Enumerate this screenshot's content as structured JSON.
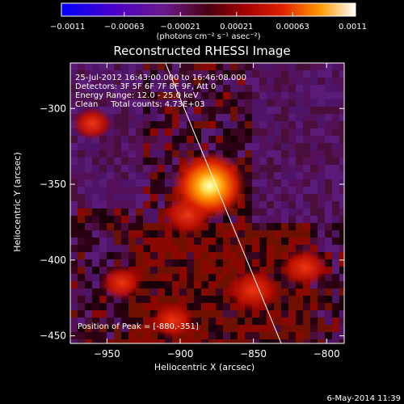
{
  "chart_data": {
    "type": "heatmap",
    "title": "Reconstructed RHESSI Image",
    "xlabel": "Heliocentric X (arcsec)",
    "ylabel": "Heliocentric Y (arcsec)",
    "xlim": [
      -975,
      -788
    ],
    "ylim": [
      -455,
      -270
    ],
    "xticks": [
      -950,
      -900,
      -850,
      -800
    ],
    "xtick_labels": [
      "−950",
      "−900",
      "−850",
      "−800"
    ],
    "yticks": [
      -450,
      -400,
      -350,
      -300
    ],
    "ytick_labels": [
      "−450",
      "−400",
      "−350",
      "−300"
    ],
    "colorbar": {
      "range": [
        -0.0011,
        0.0011
      ],
      "ticks": [
        -0.0011,
        -0.00063,
        -0.00021,
        0.00021,
        0.00063,
        0.0011
      ],
      "tick_labels": [
        "−0.0011",
        "−0.00063",
        "−0.00021",
        "0.00021",
        "0.00063",
        "0.0011"
      ],
      "unit_label": "(photons cm⁻² s⁻¹ asec⁻²)"
    },
    "peak": {
      "x": -880,
      "y": -351,
      "value": 0.0011
    },
    "limb_line": [
      {
        "x": -910,
        "y": -270
      },
      {
        "x": -831,
        "y": -455
      }
    ],
    "secondary_sources": [
      {
        "x": -895,
        "y": -370,
        "value": 0.0004
      },
      {
        "x": -850,
        "y": -420,
        "value": 0.00045
      },
      {
        "x": -815,
        "y": -405,
        "value": 0.00035
      },
      {
        "x": -940,
        "y": -415,
        "value": 0.00025
      },
      {
        "x": -905,
        "y": -440,
        "value": 0.0003
      },
      {
        "x": -960,
        "y": -310,
        "value": 0.0002
      }
    ],
    "annotations": [
      "25-Jul-2012 16:43:00.000 to 16:46:08.000",
      "Detectors: 3F 5F 6F 7F 8F 9F, Att 0",
      "Energy Range: 12.0 - 25.0 keV",
      "Clean     Total counts: 4.73E+03",
      "Position of Peak = [-880,-351]"
    ],
    "footer": "6-May-2014 11:39"
  }
}
